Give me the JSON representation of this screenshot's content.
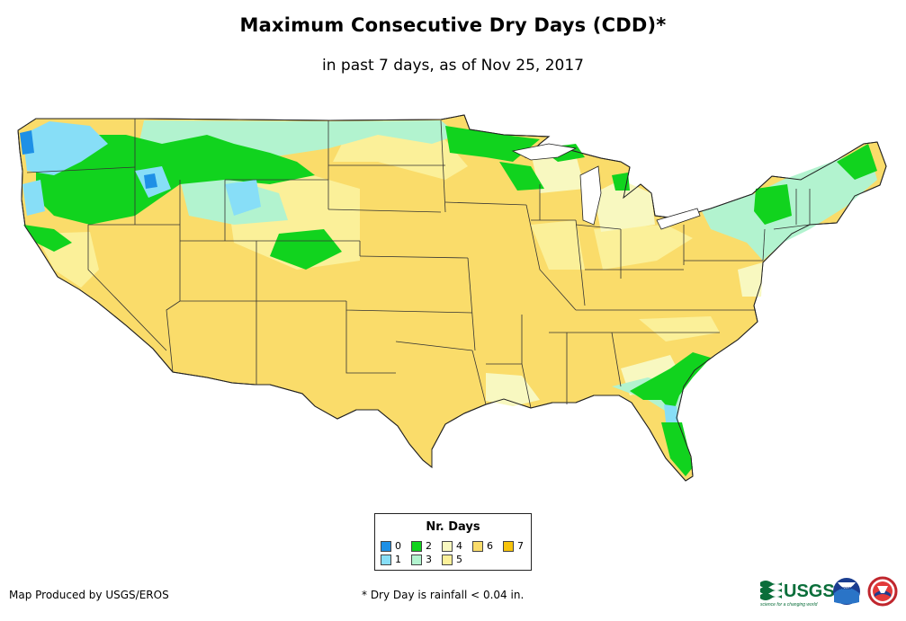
{
  "title": "Maximum Consecutive Dry Days (CDD)*",
  "subtitle": "in past 7 days, as of Nov 25, 2017",
  "legend": {
    "title": "Nr. Days",
    "items": [
      {
        "label": "0",
        "color": "#1e90e6"
      },
      {
        "label": "1",
        "color": "#87def7"
      },
      {
        "label": "2",
        "color": "#11d31e"
      },
      {
        "label": "3",
        "color": "#b2f3cf"
      },
      {
        "label": "4",
        "color": "#f8f8c0"
      },
      {
        "label": "5",
        "color": "#fbf099"
      },
      {
        "label": "6",
        "color": "#fadc6a"
      },
      {
        "label": "7",
        "color": "#f7c40b"
      }
    ]
  },
  "footer": {
    "producer": "Map Produced by USGS/EROS",
    "note": "* Dry Day is rainfall < 0.04 in."
  },
  "logos": {
    "usgs_text": "USGS",
    "usgs_tagline": "science for a changing world",
    "noaa_text": "noaa",
    "nws_icon": "nws-logo-icon"
  }
}
